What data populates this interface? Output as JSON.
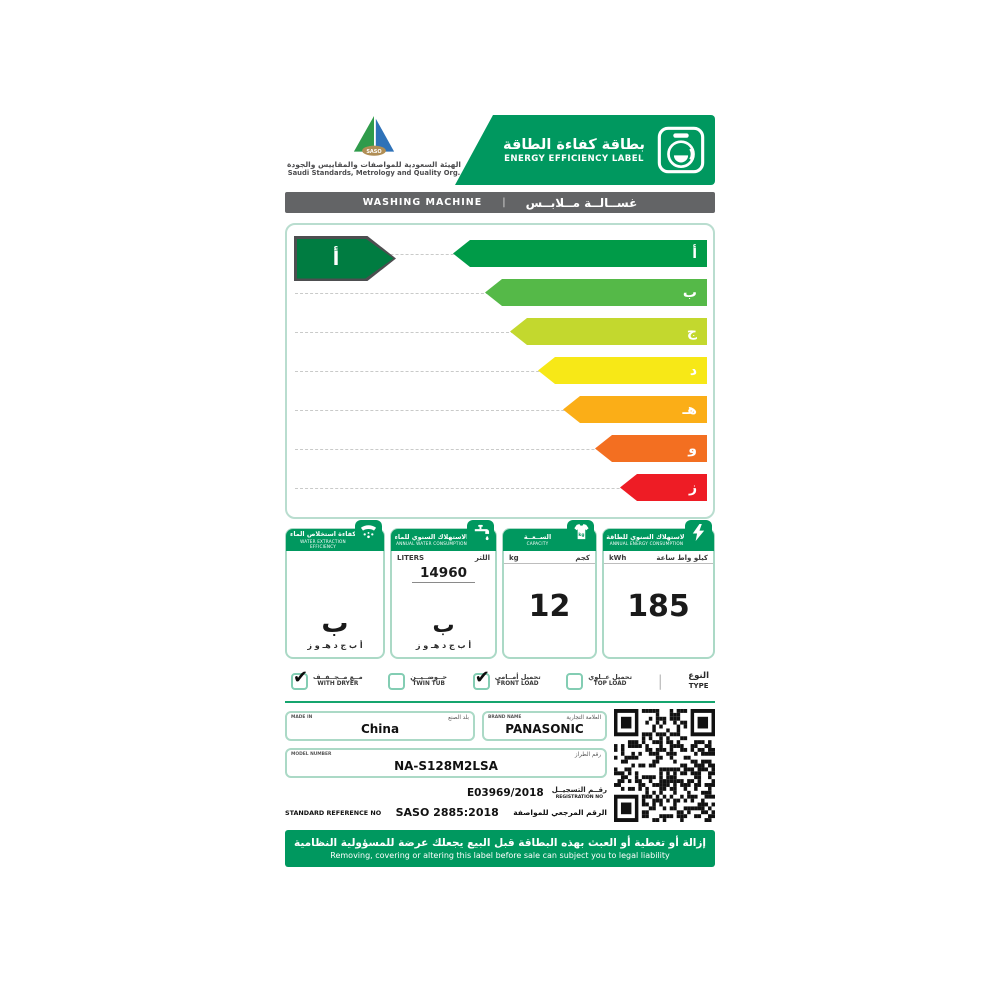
{
  "colors": {
    "brand_green": "#00985F",
    "indicator_green": "#007C41",
    "product_bar_gray": "#636466",
    "box_border_teal": "#ABD9C6"
  },
  "header": {
    "logo_text": "SASO",
    "org_name_ar": "الهيئة السعودية للمواصفات والمقاييس والجودة",
    "org_name_en": "Saudi Standards, Metrology and Quality Org.",
    "banner_title_ar": "بطاقة كفاءة الطاقة",
    "banner_title_en": "ENERGY EFFICIENCY LABEL",
    "banner_icon": "washing-machine-icon"
  },
  "product_bar": {
    "title_en": "WASHING MACHINE",
    "divider": "|",
    "title_ar": "غســالــة مــلابــس"
  },
  "rating_scale": {
    "current_rating": "أ",
    "grades": [
      {
        "letter": "أ",
        "color": "#009B48"
      },
      {
        "letter": "ب",
        "color": "#55B948"
      },
      {
        "letter": "ج",
        "color": "#C3D82E"
      },
      {
        "letter": "د",
        "color": "#F7E817"
      },
      {
        "letter": "هـ",
        "color": "#FBAE17"
      },
      {
        "letter": "و",
        "color": "#F36F21"
      },
      {
        "letter": "ز",
        "color": "#EE1C25"
      }
    ]
  },
  "info_boxes": {
    "water_extraction": {
      "title_ar": "كفاءة استخلاص الماء",
      "title_en": "WATER EXTRACTION EFFICIENCY",
      "icon": "wrung-cloth-icon",
      "grade": "ب",
      "scale_letters": "أ ب ج د هـ و ز"
    },
    "water_consumption": {
      "title_ar": "الاستهلاك السنوي للماء",
      "title_en": "ANNUAL WATER CONSUMPTION",
      "icon": "faucet-icon",
      "unit_en": "LITERS",
      "unit_ar": "اللتر",
      "value": "14960",
      "grade": "ب",
      "scale_letters": "أ ب ج د هـ و ز"
    },
    "capacity": {
      "title_ar": "الســعــة",
      "title_en": "CAPACITY",
      "icon": "t-shirt-icon",
      "unit_en": "kg",
      "unit_ar": "كجم",
      "value": "12"
    },
    "energy_consumption": {
      "title_ar": "الاستهلاك السنوي للطاقة",
      "title_en": "ANNUAL ENERGY CONSUMPTION",
      "icon": "lightning-icon",
      "unit_en": "kWh",
      "unit_ar": "كيلو واط ساعة",
      "value": "185"
    }
  },
  "type_row": {
    "label_ar": "النوع",
    "label_en": "TYPE",
    "divider": "|",
    "options": [
      {
        "ar": "مــع مــجــفــف",
        "en": "WITH DRYER",
        "checked": true,
        "mark": "✔"
      },
      {
        "ar": "حــوضــيــن",
        "en": "TWIN TUB",
        "checked": false,
        "mark": ""
      },
      {
        "ar": "تحميل أمــامي",
        "en": "FRONT LOAD",
        "checked": true,
        "mark": "✔"
      },
      {
        "ar": "تحميل عــلوي",
        "en": "TOP LOAD",
        "checked": false,
        "mark": ""
      }
    ]
  },
  "details": {
    "made_in": {
      "label_en": "MADE IN",
      "label_ar": "بلد الصنع",
      "value": "China"
    },
    "brand": {
      "label_en": "BRAND NAME",
      "label_ar": "العلامة التجارية",
      "value": "PANASONIC"
    },
    "model": {
      "label_en": "MODEL NUMBER",
      "label_ar": "رقم الطراز",
      "value": "NA-S128M2LSA"
    },
    "registration": {
      "value": "E03969/2018",
      "label_ar": "رقــم التسجيــل",
      "label_en": "REGISTRATION NO"
    },
    "standard": {
      "label_en": "STANDARD REFERENCE NO",
      "value": "SASO 2885:2018",
      "label_ar": "الرقم المرجعي للمواصفة"
    }
  },
  "footer": {
    "warning_ar": "إزالة أو تغطية أو العبث بهذه البطاقة قبل البيع يجعلك عرضة للمسؤولية النظامية",
    "warning_en": "Removing, covering or altering this label before sale can subject you to legal liability"
  }
}
